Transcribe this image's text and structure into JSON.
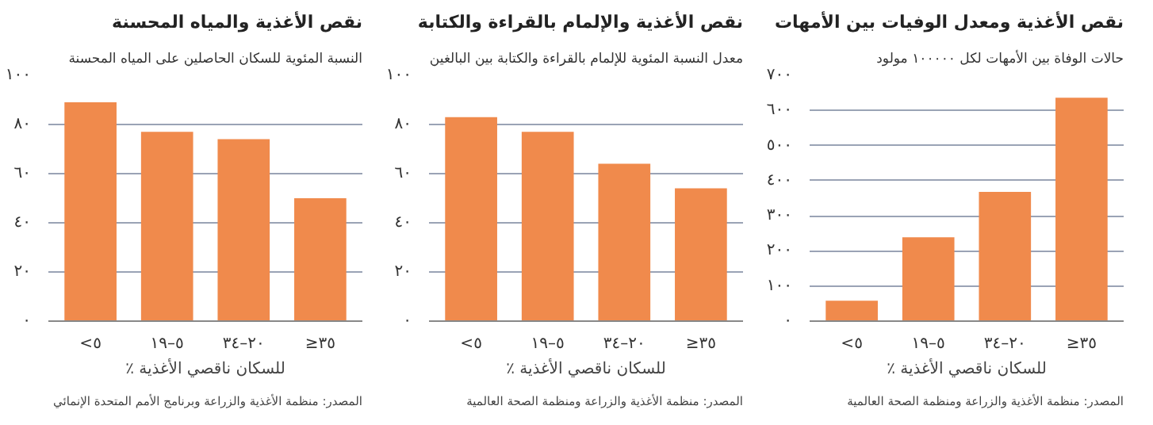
{
  "chart_data": [
    {
      "type": "bar",
      "title": "نقص الأغذية ومعدل الوفيات بين الأمهات",
      "subtitle": "حالات الوفاة بين الأمهات لكل ١٠٠٠٠٠ مولود",
      "xlabel": "٪ للسكان ناقصي الأغذية",
      "annotations": [
        "المصدر: منظمة الأغذية والزراعة ومنظمة الصحة العالمية"
      ],
      "categories": [
        "<٥",
        "٥–١٩",
        "٢٠–٣٤",
        "≥٣٥"
      ],
      "values": [
        58,
        239,
        368,
        636
      ],
      "color": "#f08a4c",
      "ylim": [
        0,
        700
      ],
      "yticks": [
        {
          "value": 0,
          "label": "٠"
        },
        {
          "value": 100,
          "label": "١٠٠"
        },
        {
          "value": 200,
          "label": "٢٠٠"
        },
        {
          "value": 300,
          "label": "٣٠٠"
        },
        {
          "value": 400,
          "label": "٤٠٠"
        },
        {
          "value": 500,
          "label": "٥٠٠"
        },
        {
          "value": 600,
          "label": "٦٠٠"
        },
        {
          "value": 700,
          "label": "٧٠٠"
        }
      ],
      "grid": "y"
    },
    {
      "type": "bar",
      "title": "نقص الأغذية والإلمام بالقراءة والكتابة",
      "subtitle": "معدل النسبة المئوية للإلمام بالقراءة والكتابة بين البالغين",
      "xlabel": "٪ للسكان ناقصي الأغذية",
      "annotations": [
        "المصدر: منظمة الأغذية والزراعة ومنظمة الصحة العالمية"
      ],
      "categories": [
        "<٥",
        "٥–١٩",
        "٢٠–٣٤",
        "≥٣٥"
      ],
      "values": [
        83,
        77,
        64,
        54
      ],
      "color": "#f08a4c",
      "ylim": [
        0,
        100
      ],
      "yticks": [
        {
          "value": 0,
          "label": "٠"
        },
        {
          "value": 20,
          "label": "٢٠"
        },
        {
          "value": 40,
          "label": "٤٠"
        },
        {
          "value": 60,
          "label": "٦٠"
        },
        {
          "value": 80,
          "label": "٨٠"
        },
        {
          "value": 100,
          "label": "١٠٠"
        }
      ],
      "grid": "y"
    },
    {
      "type": "bar",
      "title": "نقص الأغذية والمياه المحسنة",
      "subtitle": "النسبة المئوية للسكان الحاصلين على المياه المحسنة",
      "xlabel": "٪ للسكان ناقصي الأغذية",
      "annotations": [
        "المصدر: منظمة الأغذية والزراعة وبرنامج الأمم المتحدة الإنمائي"
      ],
      "categories": [
        "<٥",
        "٥–١٩",
        "٢٠–٣٤",
        "≥٣٥"
      ],
      "values": [
        89,
        77,
        74,
        50
      ],
      "color": "#f08a4c",
      "ylim": [
        0,
        100
      ],
      "yticks": [
        {
          "value": 0,
          "label": "٠"
        },
        {
          "value": 20,
          "label": "٢٠"
        },
        {
          "value": 40,
          "label": "٤٠"
        },
        {
          "value": 60,
          "label": "٦٠"
        },
        {
          "value": 80,
          "label": "٨٠"
        },
        {
          "value": 100,
          "label": "١٠٠"
        }
      ],
      "grid": "y"
    }
  ]
}
